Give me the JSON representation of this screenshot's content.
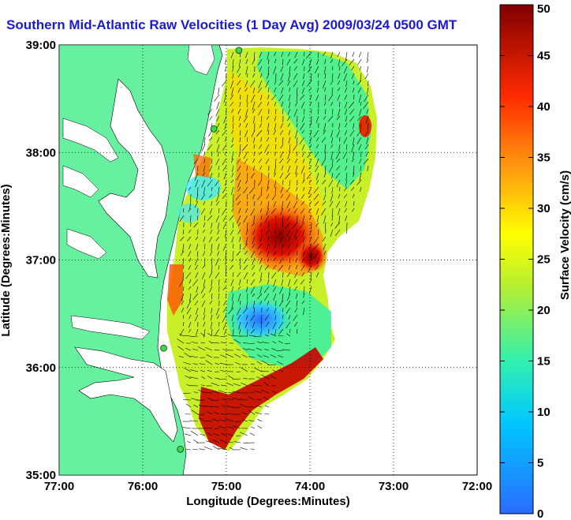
{
  "title": "Southern Mid-Atlantic Raw Velocities (1 Day Avg) 2009/03/24 0500 GMT",
  "colors": {
    "land": "#66f0a0",
    "water_bg": "#ffffff",
    "title": "#1a1ad6",
    "station": "#39d84a"
  },
  "map": {
    "xlabel": "Longitude (Degrees:Minutes)",
    "ylabel": "Latitude (Degrees:Minutes)",
    "xlim": [
      -77,
      -72
    ],
    "ylim": [
      35,
      39
    ],
    "xticks": [
      {
        "value": -77,
        "label": "77:00"
      },
      {
        "value": -76,
        "label": "76:00"
      },
      {
        "value": -75,
        "label": "75:00"
      },
      {
        "value": -74,
        "label": "74:00"
      },
      {
        "value": -73,
        "label": "73:00"
      },
      {
        "value": -72,
        "label": "72:00"
      }
    ],
    "yticks": [
      {
        "value": 35,
        "label": "35:00"
      },
      {
        "value": 36,
        "label": "36:00"
      },
      {
        "value": 37,
        "label": "37:00"
      },
      {
        "value": 38,
        "label": "38:00"
      },
      {
        "value": 39,
        "label": "39:00"
      }
    ],
    "grid": true,
    "stations": [
      {
        "lon": -74.85,
        "lat": 38.95
      },
      {
        "lon": -75.15,
        "lat": 38.22
      },
      {
        "lon": -75.75,
        "lat": 36.18
      },
      {
        "lon": -75.55,
        "lat": 35.24
      }
    ]
  },
  "colorbar": {
    "label": "Surface Velocity (cm/s)",
    "min": 0,
    "max": 50,
    "ticks": [
      {
        "value": 0,
        "label": "0"
      },
      {
        "value": 5,
        "label": "5"
      },
      {
        "value": 10,
        "label": "10"
      },
      {
        "value": 15,
        "label": "15"
      },
      {
        "value": 20,
        "label": "20"
      },
      {
        "value": 25,
        "label": "25"
      },
      {
        "value": 30,
        "label": "30"
      },
      {
        "value": 35,
        "label": "35"
      },
      {
        "value": 40,
        "label": "40"
      },
      {
        "value": 45,
        "label": "45"
      },
      {
        "value": 50,
        "label": "50"
      }
    ]
  }
}
